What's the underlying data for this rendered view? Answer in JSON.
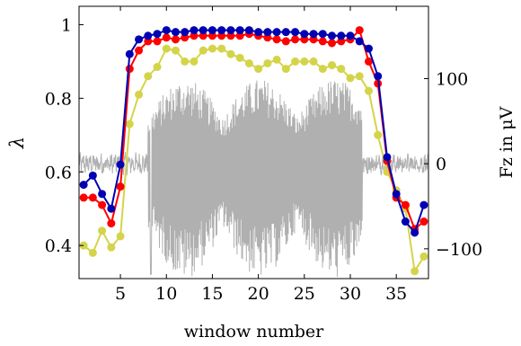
{
  "chart_data": {
    "type": "line",
    "xlabel": "window number",
    "ylabel": "λ",
    "ylabel_right": "Fz in μV",
    "xlim": [
      0.5,
      38.5
    ],
    "ylim": [
      0.31,
      1.05
    ],
    "ylim_right": [
      -135,
      185
    ],
    "xticks": [
      5,
      10,
      15,
      20,
      25,
      30,
      35
    ],
    "yticks": [
      0.4,
      0.6,
      0.8,
      1
    ],
    "yticks_right": [
      -100,
      0,
      100
    ],
    "yticks_right_labels": [
      "−100",
      "0",
      "100"
    ],
    "grid": false,
    "legend": "none",
    "x": [
      1,
      2,
      3,
      4,
      5,
      6,
      7,
      8,
      9,
      10,
      11,
      12,
      13,
      14,
      15,
      16,
      17,
      18,
      19,
      20,
      21,
      22,
      23,
      24,
      25,
      26,
      27,
      28,
      29,
      30,
      31,
      32,
      33,
      34,
      35,
      36,
      37,
      38
    ],
    "series": [
      {
        "color": "#0000b3",
        "values": [
          0.565,
          0.59,
          0.54,
          0.5,
          0.62,
          0.92,
          0.96,
          0.97,
          0.975,
          0.985,
          0.98,
          0.98,
          0.985,
          0.985,
          0.985,
          0.985,
          0.985,
          0.985,
          0.985,
          0.98,
          0.98,
          0.98,
          0.98,
          0.98,
          0.975,
          0.975,
          0.975,
          0.97,
          0.97,
          0.97,
          0.955,
          0.935,
          0.86,
          0.64,
          0.54,
          0.465,
          0.435,
          0.51
        ]
      },
      {
        "color": "#ff0000",
        "values": [
          0.53,
          0.53,
          0.51,
          0.46,
          0.56,
          0.88,
          0.93,
          0.955,
          0.955,
          0.965,
          0.96,
          0.965,
          0.97,
          0.97,
          0.97,
          0.97,
          0.97,
          0.97,
          0.975,
          0.97,
          0.965,
          0.96,
          0.955,
          0.96,
          0.96,
          0.96,
          0.955,
          0.95,
          0.955,
          0.96,
          0.985,
          0.9,
          0.84,
          0.63,
          0.53,
          0.51,
          0.445,
          0.465
        ]
      },
      {
        "color": "#d4d44a",
        "values": [
          0.4,
          0.38,
          0.44,
          0.395,
          0.425,
          0.73,
          0.81,
          0.86,
          0.885,
          0.935,
          0.93,
          0.9,
          0.9,
          0.93,
          0.935,
          0.935,
          0.92,
          0.91,
          0.895,
          0.88,
          0.895,
          0.905,
          0.88,
          0.9,
          0.9,
          0.9,
          0.88,
          0.89,
          0.88,
          0.855,
          0.86,
          0.82,
          0.7,
          0.6,
          0.55,
          0.5,
          0.33,
          0.37
        ]
      }
    ],
    "eeg_trace": {
      "color": "#b0b0b0",
      "x_start": 0.5,
      "x_end": 38.5,
      "baseline_region": [
        0.5,
        8.0
      ],
      "active_region": [
        8.0,
        31.3
      ],
      "tail_region": [
        31.3,
        38.5
      ],
      "baseline_amplitude": 10,
      "active_amplitude_range": [
        -135,
        100
      ],
      "spike_min": -130
    }
  }
}
